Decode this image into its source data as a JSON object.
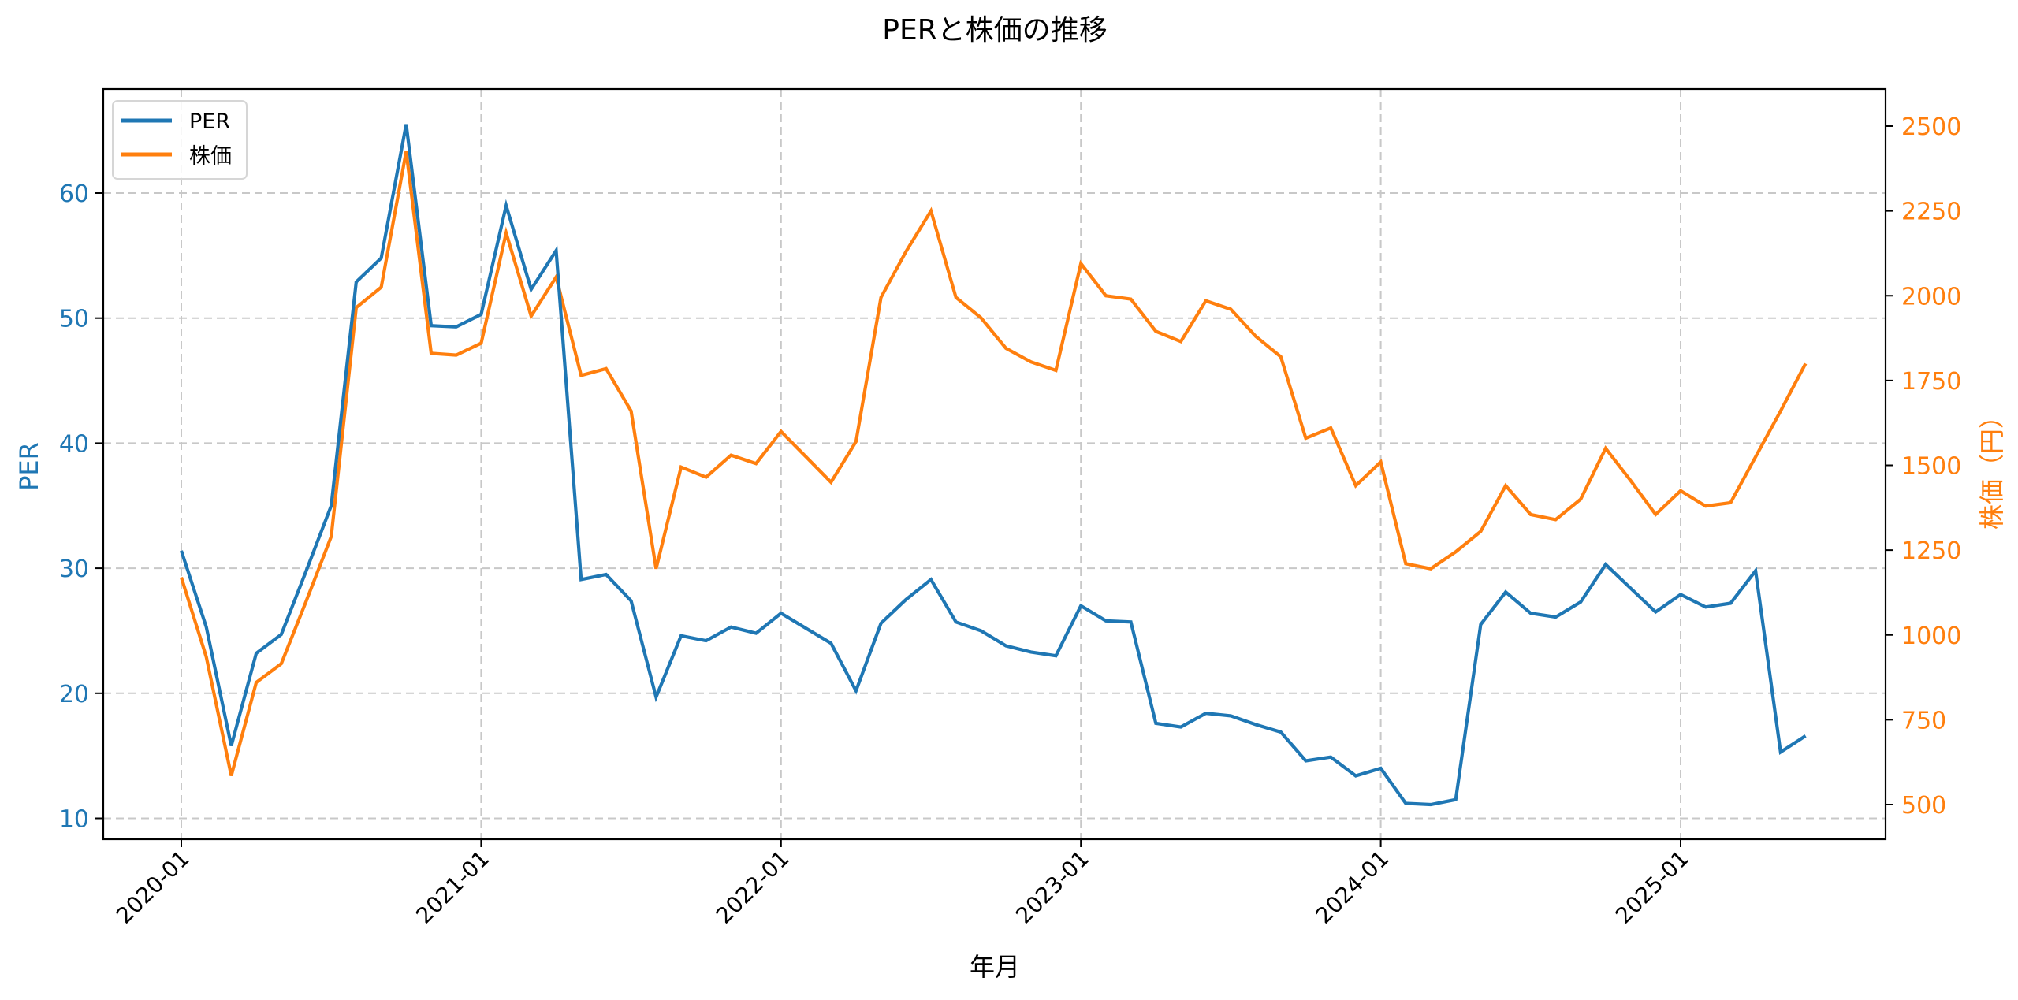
{
  "chart_data": {
    "type": "line",
    "title": "PERと株価の推移",
    "xlabel": "年月",
    "ylabel_left": "PER",
    "ylabel_right": "株価（円）",
    "x_tick_labels": [
      "2020-01",
      "2021-01",
      "2022-01",
      "2023-01",
      "2024-01",
      "2025-01"
    ],
    "y_left_ticks": [
      10,
      20,
      30,
      40,
      50,
      60
    ],
    "y_right_ticks": [
      500,
      750,
      1000,
      1250,
      1500,
      1750,
      2000,
      2250,
      2500
    ],
    "y_left_range": [
      8.5,
      68
    ],
    "y_right_range": [
      420,
      2620
    ],
    "grid": true,
    "legend_position": "upper left",
    "x": [
      "2020-01",
      "2020-02",
      "2020-03",
      "2020-04",
      "2020-05",
      "2020-06",
      "2020-07",
      "2020-08",
      "2020-09",
      "2020-10",
      "2020-11",
      "2020-12",
      "2021-01",
      "2021-02",
      "2021-03",
      "2021-04",
      "2021-05",
      "2021-06",
      "2021-07",
      "2021-08",
      "2021-09",
      "2021-10",
      "2021-11",
      "2021-12",
      "2022-01",
      "2022-02",
      "2022-03",
      "2022-04",
      "2022-05",
      "2022-06",
      "2022-07",
      "2022-08",
      "2022-09",
      "2022-10",
      "2022-11",
      "2022-12",
      "2023-01",
      "2023-02",
      "2023-03",
      "2023-04",
      "2023-05",
      "2023-06",
      "2023-07",
      "2023-08",
      "2023-09",
      "2023-10",
      "2023-11",
      "2023-12",
      "2024-01",
      "2024-02",
      "2024-03",
      "2024-04",
      "2024-05",
      "2024-06",
      "2024-07",
      "2024-08",
      "2024-09",
      "2024-10",
      "2024-11",
      "2024-12",
      "2025-01",
      "2025-02",
      "2025-03",
      "2025-04",
      "2025-05",
      "2025-06"
    ],
    "series": [
      {
        "name": "PER",
        "axis": "left",
        "color": "#1f77b4",
        "values": [
          31.4,
          25.3,
          15.8,
          23.2,
          24.7,
          29.8,
          35.0,
          52.9,
          54.8,
          65.5,
          49.4,
          49.3,
          50.3,
          59.0,
          52.3,
          55.4,
          29.1,
          29.5,
          27.4,
          19.7,
          24.6,
          24.2,
          25.3,
          24.8,
          26.4,
          25.2,
          24.0,
          20.2,
          25.6,
          27.5,
          29.1,
          25.7,
          25.0,
          23.8,
          23.3,
          23.0,
          27.0,
          25.8,
          25.7,
          17.6,
          17.3,
          18.4,
          18.2,
          17.5,
          16.9,
          14.6,
          14.9,
          13.4,
          14.0,
          11.2,
          11.1,
          11.5,
          25.5,
          28.1,
          26.4,
          26.1,
          27.3,
          30.3,
          28.4,
          26.5,
          27.9,
          26.9,
          27.2,
          29.8,
          15.3,
          16.6
        ]
      },
      {
        "name": "株価",
        "axis": "right",
        "color": "#ff7f0e",
        "values": [
          1170,
          935,
          585,
          860,
          915,
          1100,
          1290,
          1965,
          2025,
          2425,
          1830,
          1825,
          1860,
          2185,
          1940,
          2055,
          1765,
          1785,
          1660,
          1195,
          1495,
          1465,
          1530,
          1505,
          1600,
          1525,
          1450,
          1570,
          1995,
          2130,
          2250,
          1995,
          1935,
          1845,
          1805,
          1780,
          2095,
          2000,
          1990,
          1895,
          1865,
          1985,
          1960,
          1880,
          1820,
          1580,
          1610,
          1440,
          1510,
          1210,
          1195,
          1245,
          1305,
          1440,
          1355,
          1340,
          1400,
          1550,
          1455,
          1355,
          1425,
          1380,
          1390,
          1525,
          1660,
          1800
        ]
      }
    ]
  },
  "legend": {
    "items": [
      {
        "label": "PER",
        "color": "#1f77b4"
      },
      {
        "label": "株価",
        "color": "#ff7f0e"
      }
    ]
  },
  "colors": {
    "per": "#1f77b4",
    "price": "#ff7f0e",
    "grid": "#c8c8c8",
    "axis": "#000000"
  }
}
